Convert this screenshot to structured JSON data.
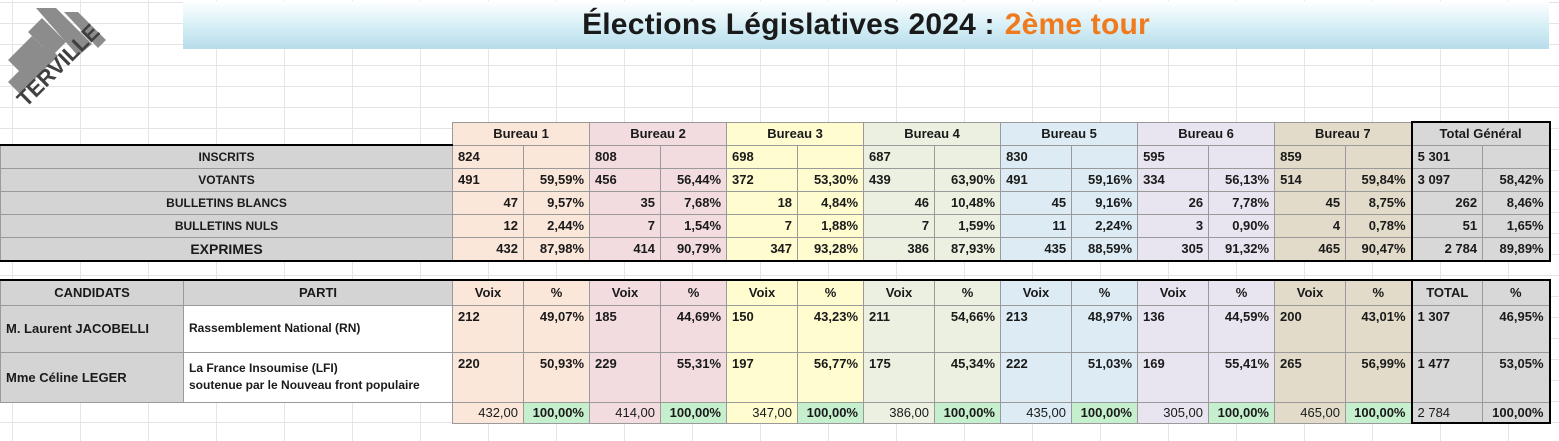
{
  "header": {
    "title_main": "Élections Législatives 2024 :",
    "title_round": "2ème tour",
    "logo_text": "TERVILLE"
  },
  "bureaux": [
    "Bureau 1",
    "Bureau 2",
    "Bureau 3",
    "Bureau 4",
    "Bureau 5",
    "Bureau 6",
    "Bureau 7",
    "Total Général"
  ],
  "stats": [
    {
      "label": "INSCRITS",
      "cells": [
        [
          "824",
          ""
        ],
        [
          "808",
          ""
        ],
        [
          "698",
          ""
        ],
        [
          "687",
          ""
        ],
        [
          "830",
          ""
        ],
        [
          "595",
          ""
        ],
        [
          "859",
          ""
        ],
        [
          "5 301",
          ""
        ]
      ]
    },
    {
      "label": "VOTANTS",
      "cells": [
        [
          "491",
          "59,59%"
        ],
        [
          "456",
          "56,44%"
        ],
        [
          "372",
          "53,30%"
        ],
        [
          "439",
          "63,90%"
        ],
        [
          "491",
          "59,16%"
        ],
        [
          "334",
          "56,13%"
        ],
        [
          "514",
          "59,84%"
        ],
        [
          "3 097",
          "58,42%"
        ]
      ]
    },
    {
      "label": "BULLETINS BLANCS",
      "cells": [
        [
          "47",
          "9,57%"
        ],
        [
          "35",
          "7,68%"
        ],
        [
          "18",
          "4,84%"
        ],
        [
          "46",
          "10,48%"
        ],
        [
          "45",
          "9,16%"
        ],
        [
          "26",
          "7,78%"
        ],
        [
          "45",
          "8,75%"
        ],
        [
          "262",
          "8,46%"
        ]
      ]
    },
    {
      "label": "BULLETINS NULS",
      "cells": [
        [
          "12",
          "2,44%"
        ],
        [
          "7",
          "1,54%"
        ],
        [
          "7",
          "1,88%"
        ],
        [
          "7",
          "1,59%"
        ],
        [
          "11",
          "2,24%"
        ],
        [
          "3",
          "0,90%"
        ],
        [
          "4",
          "0,78%"
        ],
        [
          "51",
          "1,65%"
        ]
      ]
    },
    {
      "label": "EXPRIMES",
      "cells": [
        [
          "432",
          "87,98%"
        ],
        [
          "414",
          "90,79%"
        ],
        [
          "347",
          "93,28%"
        ],
        [
          "386",
          "87,93%"
        ],
        [
          "435",
          "88,59%"
        ],
        [
          "305",
          "91,32%"
        ],
        [
          "465",
          "90,47%"
        ],
        [
          "2 784",
          "89,89%"
        ]
      ]
    }
  ],
  "results": {
    "col_candidats": "CANDIDATS",
    "col_parti": "PARTI",
    "col_voix": "Voix",
    "col_pct": "%",
    "col_total": "TOTAL",
    "candidates": [
      {
        "name": "M. Laurent JACOBELLI",
        "party_line1": "Rassemblement National (RN)",
        "party_line2": "",
        "cells": [
          [
            "212",
            "49,07%"
          ],
          [
            "185",
            "44,69%"
          ],
          [
            "150",
            "43,23%"
          ],
          [
            "211",
            "54,66%"
          ],
          [
            "213",
            "48,97%"
          ],
          [
            "136",
            "44,59%"
          ],
          [
            "200",
            "43,01%"
          ],
          [
            "1 307",
            "46,95%"
          ]
        ]
      },
      {
        "name": "Mme Céline LEGER",
        "party_line1": "La France Insoumise (LFI)",
        "party_line2": "soutenue par le Nouveau front populaire",
        "cells": [
          [
            "220",
            "50,93%"
          ],
          [
            "229",
            "55,31%"
          ],
          [
            "197",
            "56,77%"
          ],
          [
            "175",
            "45,34%"
          ],
          [
            "222",
            "51,03%"
          ],
          [
            "169",
            "55,41%"
          ],
          [
            "265",
            "56,99%"
          ],
          [
            "1 477",
            "53,05%"
          ]
        ]
      }
    ],
    "totals": [
      [
        "432,00",
        "100,00%"
      ],
      [
        "414,00",
        "100,00%"
      ],
      [
        "347,00",
        "100,00%"
      ],
      [
        "386,00",
        "100,00%"
      ],
      [
        "435,00",
        "100,00%"
      ],
      [
        "305,00",
        "100,00%"
      ],
      [
        "465,00",
        "100,00%"
      ],
      [
        "2 784",
        "100,00%"
      ]
    ]
  }
}
